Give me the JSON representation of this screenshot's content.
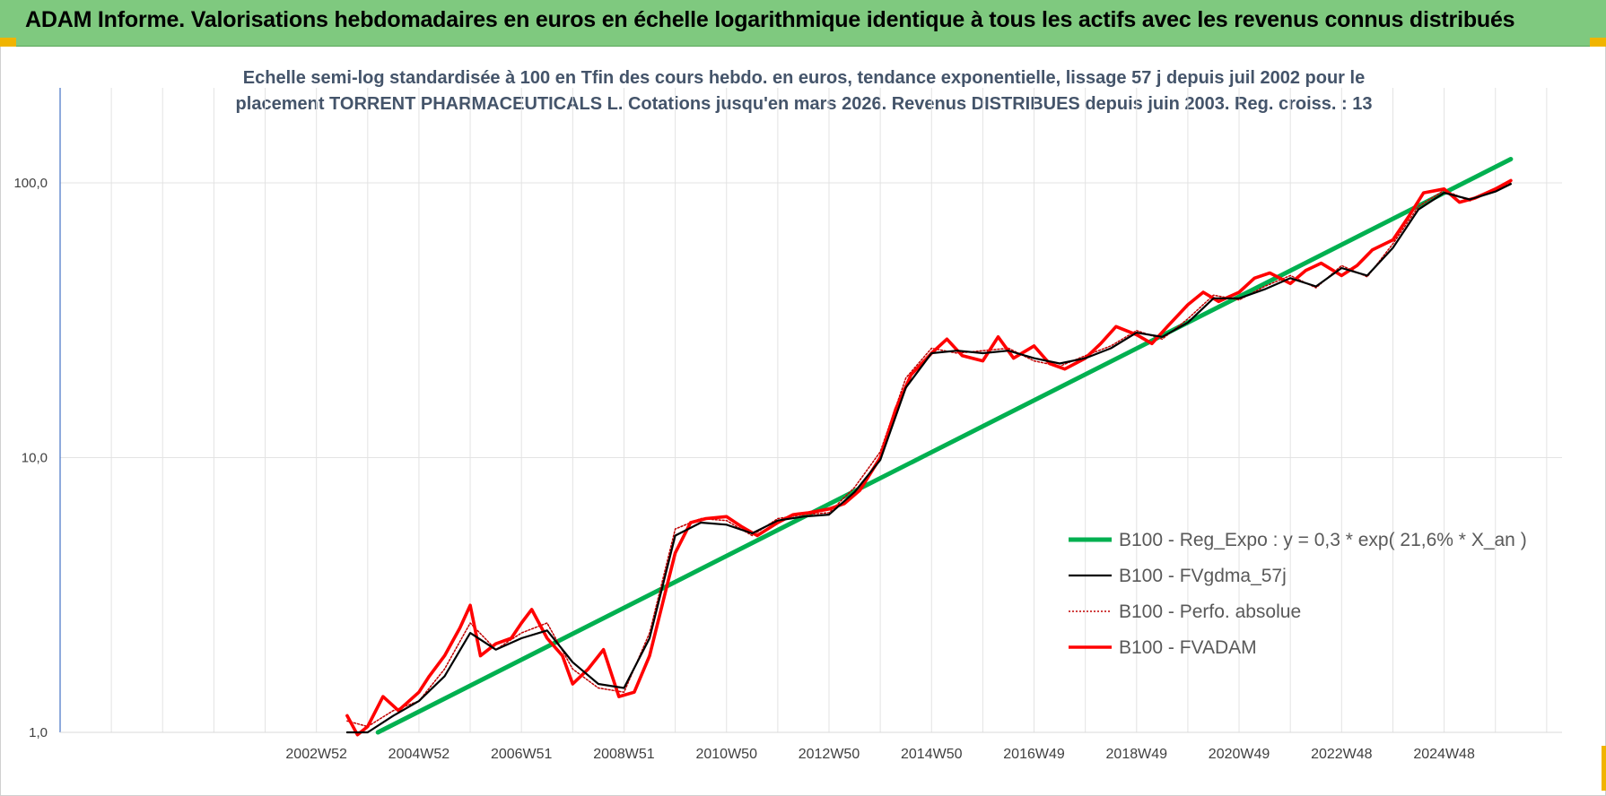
{
  "header": {
    "title": "ADAM Informe. Valorisations hebdomadaires en euros en échelle logarithmique identique à tous les actifs avec les revenus connus distribués"
  },
  "colors": {
    "banner": "#7fc97f",
    "trend": "#00b050",
    "smooth": "#000000",
    "perfo": "#c00000",
    "fvadam": "#ff0000",
    "corner": "#f0b400"
  },
  "chart_data": {
    "type": "line",
    "title_lines": [
      "Echelle semi-log standardisée à 100 en Tfin des cours hebdo. en euros, tendance exponentielle, lissage 57 j depuis juil 2002 pour le",
      "placement TORRENT PHARMACEUTICALS L. Cotations jusqu'en mars 2026. Revenus DISTRIBUES depuis juin 2003. Reg. croiss. : 13"
    ],
    "y_scale": "log",
    "ylim": [
      1,
      200
    ],
    "y_ticks": [
      {
        "value": 1,
        "label": "1,0"
      },
      {
        "value": 10,
        "label": "10,0"
      },
      {
        "value": 100,
        "label": "100,0"
      }
    ],
    "xlim": [
      1998.0,
      2027.3
    ],
    "x_ticks": [
      {
        "value": 2003.0,
        "label": "2002W52"
      },
      {
        "value": 2005.0,
        "label": "2004W52"
      },
      {
        "value": 2007.0,
        "label": "2006W51"
      },
      {
        "value": 2009.0,
        "label": "2008W51"
      },
      {
        "value": 2011.0,
        "label": "2010W50"
      },
      {
        "value": 2013.0,
        "label": "2012W50"
      },
      {
        "value": 2015.0,
        "label": "2014W50"
      },
      {
        "value": 2017.0,
        "label": "2016W49"
      },
      {
        "value": 2019.0,
        "label": "2018W49"
      },
      {
        "value": 2021.0,
        "label": "2020W49"
      },
      {
        "value": 2023.0,
        "label": "2022W48"
      },
      {
        "value": 2025.0,
        "label": "2024W48"
      }
    ],
    "grid": true,
    "legend_position": "bottom-right",
    "series": [
      {
        "name": "B100 - Reg_Expo : y = 0,3 * exp( 21,6% *  X_an )",
        "key": "trend",
        "x": [
          2004.2,
          2026.3
        ],
        "y": [
          1.0,
          122.0
        ]
      },
      {
        "name": "B100 - FVgdma_57j",
        "key": "smooth",
        "x": [
          2003.6,
          2004.0,
          2004.5,
          2005.0,
          2005.5,
          2006.0,
          2006.5,
          2007.0,
          2007.5,
          2008.0,
          2008.5,
          2009.0,
          2009.5,
          2010.0,
          2010.5,
          2011.0,
          2011.5,
          2012.0,
          2012.5,
          2013.0,
          2013.5,
          2014.0,
          2014.5,
          2015.0,
          2015.5,
          2016.0,
          2016.5,
          2017.0,
          2017.5,
          2018.0,
          2018.5,
          2019.0,
          2019.5,
          2020.0,
          2020.5,
          2021.0,
          2021.5,
          2022.0,
          2022.5,
          2023.0,
          2023.5,
          2024.0,
          2024.5,
          2025.0,
          2025.5,
          2026.0,
          2026.3
        ],
        "y": [
          1.0,
          1.0,
          1.15,
          1.3,
          1.6,
          2.3,
          2.0,
          2.2,
          2.35,
          1.8,
          1.5,
          1.45,
          2.2,
          5.2,
          5.8,
          5.7,
          5.3,
          5.9,
          6.1,
          6.2,
          7.5,
          9.8,
          18.0,
          24.0,
          24.5,
          24.0,
          24.5,
          23.0,
          22.0,
          23.0,
          25.0,
          28.5,
          27.5,
          31.0,
          38.0,
          38.0,
          41.0,
          45.0,
          42.0,
          49.0,
          46.0,
          58.0,
          80.0,
          92.0,
          87.0,
          93.0,
          99.0
        ]
      },
      {
        "name": "B100 - Perfo. absolue",
        "key": "perfo",
        "x": [
          2003.6,
          2004.0,
          2004.5,
          2005.0,
          2005.5,
          2006.0,
          2006.5,
          2007.0,
          2007.5,
          2008.0,
          2008.5,
          2009.0,
          2009.5,
          2010.0,
          2010.5,
          2011.0,
          2011.5,
          2012.0,
          2012.5,
          2013.0,
          2013.5,
          2014.0,
          2014.5,
          2015.0,
          2015.5,
          2016.0,
          2016.5,
          2017.0,
          2017.5,
          2018.0,
          2018.5,
          2019.0,
          2019.5,
          2020.0,
          2020.5,
          2021.0,
          2021.5,
          2022.0,
          2022.5,
          2023.0,
          2023.5,
          2024.0,
          2024.5,
          2025.0,
          2025.5,
          2026.0,
          2026.3
        ],
        "y": [
          1.1,
          1.05,
          1.2,
          1.3,
          1.7,
          2.5,
          2.0,
          2.3,
          2.5,
          1.7,
          1.45,
          1.4,
          2.3,
          5.5,
          6.0,
          5.9,
          5.2,
          6.0,
          6.2,
          6.3,
          7.8,
          10.5,
          19.5,
          25.0,
          24.0,
          24.5,
          25.0,
          22.5,
          21.5,
          23.5,
          25.5,
          29.0,
          27.0,
          32.0,
          39.0,
          37.5,
          42.0,
          46.0,
          41.5,
          50.0,
          45.5,
          60.0,
          82.0,
          94.0,
          86.0,
          94.0,
          100.0
        ]
      },
      {
        "name": "B100 - FVADAM",
        "key": "fvadam",
        "x": [
          2003.6,
          2003.8,
          2004.0,
          2004.3,
          2004.6,
          2005.0,
          2005.2,
          2005.5,
          2005.8,
          2006.0,
          2006.2,
          2006.5,
          2006.8,
          2007.0,
          2007.2,
          2007.5,
          2007.8,
          2008.0,
          2008.3,
          2008.6,
          2008.9,
          2009.2,
          2009.5,
          2009.8,
          2010.0,
          2010.3,
          2010.6,
          2011.0,
          2011.3,
          2011.6,
          2012.0,
          2012.3,
          2012.6,
          2013.0,
          2013.3,
          2013.6,
          2014.0,
          2014.3,
          2014.6,
          2015.0,
          2015.3,
          2015.6,
          2016.0,
          2016.3,
          2016.6,
          2017.0,
          2017.3,
          2017.6,
          2018.0,
          2018.3,
          2018.6,
          2019.0,
          2019.3,
          2019.6,
          2020.0,
          2020.3,
          2020.6,
          2021.0,
          2021.3,
          2021.6,
          2022.0,
          2022.3,
          2022.6,
          2023.0,
          2023.3,
          2023.6,
          2024.0,
          2024.3,
          2024.6,
          2025.0,
          2025.3,
          2025.6,
          2026.0,
          2026.3
        ],
        "y": [
          1.15,
          0.98,
          1.05,
          1.35,
          1.2,
          1.4,
          1.6,
          1.9,
          2.4,
          2.9,
          1.9,
          2.1,
          2.2,
          2.5,
          2.8,
          2.2,
          1.9,
          1.5,
          1.7,
          2.0,
          1.35,
          1.4,
          1.9,
          3.2,
          4.5,
          5.8,
          6.0,
          6.1,
          5.6,
          5.2,
          5.8,
          6.2,
          6.3,
          6.5,
          6.8,
          7.6,
          10.0,
          15.0,
          20.0,
          24.0,
          27.0,
          23.5,
          22.5,
          27.5,
          23.0,
          25.5,
          22.0,
          21.0,
          23.0,
          26.0,
          30.0,
          28.0,
          26.0,
          30.0,
          36.0,
          40.0,
          37.0,
          40.0,
          45.0,
          47.0,
          43.0,
          48.0,
          51.0,
          46.0,
          50.0,
          57.0,
          62.0,
          75.0,
          92.0,
          95.0,
          85.0,
          88.0,
          95.0,
          102.0
        ]
      }
    ]
  }
}
